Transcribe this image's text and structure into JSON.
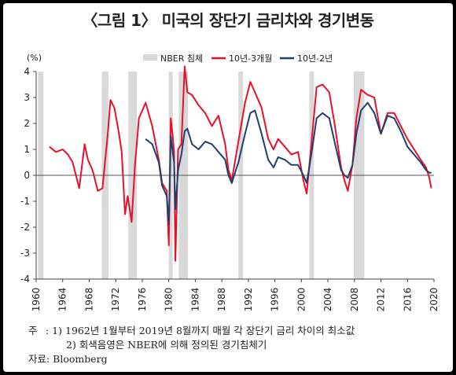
{
  "title": "〈그림 1〉 미국의 장단기 금리차와 경기변동",
  "notes": {
    "label": "주",
    "line1": ": 1) 1962년 1월부터 2019년 8월까지 매월 각 장단기 금리 차이의 최소값",
    "line2": "2) 회색음영은 NBER에 의해 정의된 경기침체기",
    "source": "자료: Bloomberg"
  },
  "colors": {
    "recession": "#d9d9d9",
    "spread_3m": "#e8102a",
    "spread_2y": "#1f3f6e"
  },
  "chart_data": {
    "type": "line",
    "ylabel": "(%)",
    "xlim": [
      1960,
      2020
    ],
    "ylim": [
      -4,
      4
    ],
    "xticks": [
      1960,
      1964,
      1968,
      1972,
      1976,
      1980,
      1984,
      1988,
      1992,
      1996,
      2000,
      2004,
      2008,
      2012,
      2016,
      2020
    ],
    "yticks": [
      4,
      3,
      2,
      1,
      0,
      -1,
      -2,
      -3,
      -4
    ],
    "legend": {
      "position": "top",
      "entries": [
        {
          "label": "NBER 침체",
          "kind": "band"
        },
        {
          "label": "10년-3개월",
          "kind": "line",
          "series": 0
        },
        {
          "label": "10년-2년",
          "kind": "line",
          "series": 1
        }
      ]
    },
    "recessions": [
      [
        1960.3,
        1961.1
      ],
      [
        1969.9,
        1970.9
      ],
      [
        1973.9,
        1975.2
      ],
      [
        1980.0,
        1980.6
      ],
      [
        1981.5,
        1982.9
      ],
      [
        1990.5,
        1991.2
      ],
      [
        2001.2,
        2001.9
      ],
      [
        2007.9,
        2009.5
      ]
    ],
    "series": [
      {
        "name": "10년-3개월",
        "x": [
          1962.0,
          1963.0,
          1964.0,
          1964.8,
          1965.5,
          1966.5,
          1967.3,
          1967.8,
          1968.5,
          1969.3,
          1970.0,
          1970.8,
          1971.2,
          1971.8,
          1972.5,
          1972.9,
          1973.4,
          1973.8,
          1974.4,
          1974.9,
          1975.5,
          1976.5,
          1977.5,
          1978.5,
          1979.0,
          1979.7,
          1980.0,
          1980.3,
          1980.6,
          1980.8,
          1981.0,
          1981.4,
          1981.9,
          1982.4,
          1982.8,
          1983.5,
          1984.5,
          1985.5,
          1986.5,
          1987.5,
          1988.5,
          1989.0,
          1989.5,
          1990.5,
          1991.5,
          1992.3,
          1993.0,
          1994.0,
          1995.0,
          1995.8,
          1996.5,
          1997.5,
          1998.5,
          1999.5,
          2000.3,
          2000.8,
          2001.5,
          2002.3,
          2003.2,
          2004.2,
          2005.0,
          2006.0,
          2006.5,
          2007.0,
          2007.7,
          2008.3,
          2009.0,
          2010.0,
          2011.0,
          2012.0,
          2013.0,
          2014.0,
          2015.0,
          2016.0,
          2017.0,
          2018.0,
          2018.8,
          2019.3,
          2019.6
        ],
        "values": [
          1.1,
          0.9,
          1.0,
          0.8,
          0.5,
          -0.5,
          1.2,
          0.6,
          0.2,
          -0.6,
          -0.5,
          1.6,
          2.9,
          2.6,
          1.6,
          0.9,
          -1.5,
          -0.8,
          -1.8,
          0.4,
          2.2,
          2.8,
          1.9,
          0.6,
          -0.3,
          -0.6,
          -2.7,
          2.2,
          1.5,
          0.9,
          -3.3,
          1.0,
          1.2,
          4.2,
          3.2,
          3.1,
          2.7,
          2.4,
          1.9,
          2.3,
          1.2,
          0.2,
          -0.2,
          1.3,
          2.8,
          3.6,
          3.2,
          2.6,
          1.4,
          1.0,
          1.4,
          1.1,
          0.8,
          0.9,
          -0.2,
          -0.7,
          1.2,
          3.4,
          3.5,
          3.2,
          2.0,
          0.3,
          -0.2,
          -0.6,
          0.4,
          2.2,
          3.3,
          3.1,
          3.0,
          1.6,
          2.4,
          2.4,
          1.9,
          1.4,
          1.0,
          0.6,
          0.3,
          -0.1,
          -0.5
        ]
      },
      {
        "name": "10년-2년",
        "x": [
          1976.5,
          1977.5,
          1978.5,
          1979.0,
          1979.7,
          1980.0,
          1980.3,
          1980.6,
          1980.8,
          1981.0,
          1981.4,
          1981.9,
          1982.4,
          1982.8,
          1983.5,
          1984.5,
          1985.5,
          1986.5,
          1987.5,
          1988.5,
          1989.0,
          1989.5,
          1990.5,
          1991.5,
          1992.3,
          1993.0,
          1994.0,
          1995.0,
          1995.8,
          1996.5,
          1997.5,
          1998.5,
          1999.5,
          2000.3,
          2000.8,
          2001.5,
          2002.3,
          2003.2,
          2004.2,
          2005.0,
          2006.0,
          2006.5,
          2007.0,
          2007.7,
          2008.3,
          2009.0,
          2010.0,
          2011.0,
          2012.0,
          2013.0,
          2014.0,
          2015.0,
          2016.0,
          2017.0,
          2018.0,
          2018.8,
          2019.3,
          2019.6
        ],
        "values": [
          1.4,
          1.2,
          0.5,
          -0.4,
          -0.8,
          -1.9,
          1.5,
          0.9,
          0.5,
          -1.3,
          0.2,
          0.8,
          1.7,
          1.8,
          1.2,
          1.0,
          1.3,
          1.2,
          0.9,
          0.6,
          0.0,
          -0.3,
          0.5,
          1.6,
          2.4,
          2.5,
          1.6,
          0.6,
          0.3,
          0.7,
          0.6,
          0.4,
          0.4,
          0.0,
          -0.3,
          0.8,
          2.2,
          2.4,
          2.2,
          1.3,
          0.2,
          0.0,
          -0.1,
          0.4,
          1.6,
          2.5,
          2.8,
          2.4,
          1.6,
          2.3,
          2.2,
          1.7,
          1.1,
          0.8,
          0.5,
          0.2,
          0.1,
          0.1
        ]
      }
    ]
  }
}
